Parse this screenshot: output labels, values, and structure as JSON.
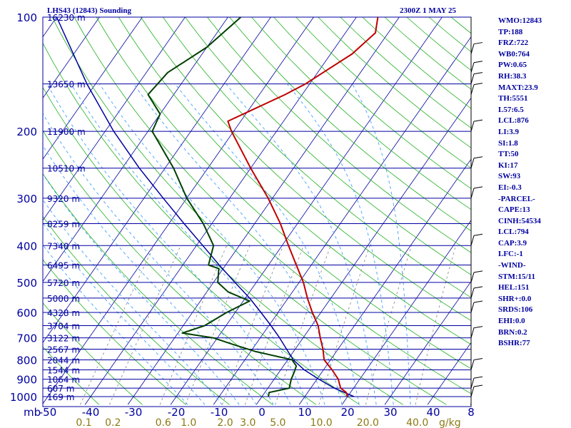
{
  "header": {
    "station_title": "LHS43 (12843) Sounding",
    "valid_time": "2300Z  1 MAY 25"
  },
  "indices": [
    "WMO:12843",
    "TP:188",
    "FRZ:722",
    "WB0:764",
    "PW:0.65",
    "RH:38.3",
    "MAXT:23.9",
    "TH:5551",
    "L57:6.5",
    "LCL:876",
    "LI:3.9",
    "SI:1.8",
    "TT:50",
    "KI:17",
    "SW:93",
    "EI:-0.3",
    "-PARCEL-",
    "CAPE:13",
    "CINH:54534",
    "LCL:794",
    "CAP:3.9",
    "LFC:-1",
    "-WIND-",
    "STM:15/11",
    "HEL:151",
    "SHR+:0.0",
    "SRDS:106",
    "EHI:0.0",
    "BRN:0.2",
    "BSHR:77"
  ],
  "chart_data": {
    "type": "skew-t",
    "pressure_labels": [
      "100",
      "200",
      "300",
      "400",
      "500",
      "600",
      "700",
      "800",
      "900",
      "1000"
    ],
    "pressure_ticks": [
      100,
      200,
      300,
      400,
      500,
      600,
      700,
      800,
      900,
      1000
    ],
    "pressure_unit": "mb",
    "temperature_ticks": [
      "-50",
      "-40",
      "-30",
      "-20",
      "-10",
      "0",
      "10",
      "20",
      "30",
      "40",
      "8"
    ],
    "mixing_ratio_labels": [
      "0.1",
      "0.2",
      "0.6",
      "1.0",
      "2.0",
      "3.0",
      "5.0",
      "10.0",
      "20.0",
      "40.0"
    ],
    "mixing_ratio_unit": "g/kg",
    "height_levels": [
      {
        "p": 100,
        "h": "16230 m"
      },
      {
        "p": 150,
        "h": "13650 m"
      },
      {
        "p": 200,
        "h": "11900 m"
      },
      {
        "p": 250,
        "h": "10510 m"
      },
      {
        "p": 300,
        "h": "9320 m"
      },
      {
        "p": 350,
        "h": "8259 m"
      },
      {
        "p": 400,
        "h": "7340 m"
      },
      {
        "p": 450,
        "h": "6495 m"
      },
      {
        "p": 500,
        "h": "5720 m"
      },
      {
        "p": 550,
        "h": "5000 m"
      },
      {
        "p": 600,
        "h": "4328 m"
      },
      {
        "p": 650,
        "h": "3704 m"
      },
      {
        "p": 700,
        "h": "3122 m"
      },
      {
        "p": 750,
        "h": "2567 m"
      },
      {
        "p": 800,
        "h": "2044 m"
      },
      {
        "p": 850,
        "h": "1544 m"
      },
      {
        "p": 900,
        "h": "1064 m"
      },
      {
        "p": 950,
        "h": "607 m"
      },
      {
        "p": 1000,
        "h": "169 m"
      }
    ],
    "temperature_profile": [
      {
        "p": 1000,
        "t": 20
      },
      {
        "p": 975,
        "t": 19
      },
      {
        "p": 950,
        "t": 17
      },
      {
        "p": 925,
        "t": 16
      },
      {
        "p": 900,
        "t": 15
      },
      {
        "p": 850,
        "t": 12
      },
      {
        "p": 800,
        "t": 8.5
      },
      {
        "p": 750,
        "t": 6.5
      },
      {
        "p": 700,
        "t": 4.0
      },
      {
        "p": 650,
        "t": 1.5
      },
      {
        "p": 600,
        "t": -2
      },
      {
        "p": 550,
        "t": -5.5
      },
      {
        "p": 500,
        "t": -9
      },
      {
        "p": 450,
        "t": -13.5
      },
      {
        "p": 400,
        "t": -18.5
      },
      {
        "p": 350,
        "t": -24
      },
      {
        "p": 300,
        "t": -31
      },
      {
        "p": 250,
        "t": -40
      },
      {
        "p": 200,
        "t": -50.5
      },
      {
        "p": 188,
        "t": -53
      },
      {
        "p": 175,
        "t": -49
      },
      {
        "p": 160,
        "t": -44
      },
      {
        "p": 150,
        "t": -41
      },
      {
        "p": 125,
        "t": -35
      },
      {
        "p": 110,
        "t": -33
      },
      {
        "p": 100,
        "t": -35
      }
    ],
    "dewpoint_profile": [
      {
        "p": 1000,
        "t": 1.5
      },
      {
        "p": 975,
        "t": 1
      },
      {
        "p": 950,
        "t": 5
      },
      {
        "p": 900,
        "t": 4
      },
      {
        "p": 860,
        "t": 3.5
      },
      {
        "p": 830,
        "t": 3
      },
      {
        "p": 800,
        "t": 1
      },
      {
        "p": 760,
        "t": -9
      },
      {
        "p": 730,
        "t": -15
      },
      {
        "p": 700,
        "t": -21
      },
      {
        "p": 680,
        "t": -29
      },
      {
        "p": 650,
        "t": -25
      },
      {
        "p": 600,
        "t": -22
      },
      {
        "p": 560,
        "t": -18.5
      },
      {
        "p": 530,
        "t": -25
      },
      {
        "p": 500,
        "t": -29
      },
      {
        "p": 460,
        "t": -31
      },
      {
        "p": 450,
        "t": -34
      },
      {
        "p": 400,
        "t": -36
      },
      {
        "p": 350,
        "t": -42
      },
      {
        "p": 300,
        "t": -50
      },
      {
        "p": 250,
        "t": -58
      },
      {
        "p": 200,
        "t": -69
      },
      {
        "p": 180,
        "t": -70
      },
      {
        "p": 160,
        "t": -76
      },
      {
        "p": 140,
        "t": -75
      },
      {
        "p": 120,
        "t": -70
      },
      {
        "p": 100,
        "t": -67
      }
    ],
    "parcel_profile": [
      {
        "p": 1000,
        "t": 21.5
      },
      {
        "p": 950,
        "t": 15.5
      },
      {
        "p": 900,
        "t": 10.5
      },
      {
        "p": 850,
        "t": 5.5
      },
      {
        "p": 800,
        "t": 1.3
      },
      {
        "p": 750,
        "t": -2
      },
      {
        "p": 700,
        "t": -5.5
      },
      {
        "p": 650,
        "t": -9.5
      },
      {
        "p": 600,
        "t": -14
      },
      {
        "p": 550,
        "t": -19
      },
      {
        "p": 500,
        "t": -25
      },
      {
        "p": 450,
        "t": -31.5
      },
      {
        "p": 400,
        "t": -38.5
      },
      {
        "p": 350,
        "t": -46.5
      },
      {
        "p": 300,
        "t": -55.5
      },
      {
        "p": 250,
        "t": -66
      },
      {
        "p": 200,
        "t": -78
      },
      {
        "p": 150,
        "t": -92
      },
      {
        "p": 100,
        "t": -110
      }
    ],
    "colors": {
      "isobar": "#0000a0",
      "isotherm": "#0000a0",
      "dry_adiabat": "#20b020",
      "moist_adiabat": "#40a0ff",
      "mixing_ratio": "#808080",
      "temperature": "#c00000",
      "dewpoint": "#004000",
      "parcel": "#0000a0",
      "mixing_label": "#8c7a14",
      "height_label": "#0000a0"
    }
  }
}
